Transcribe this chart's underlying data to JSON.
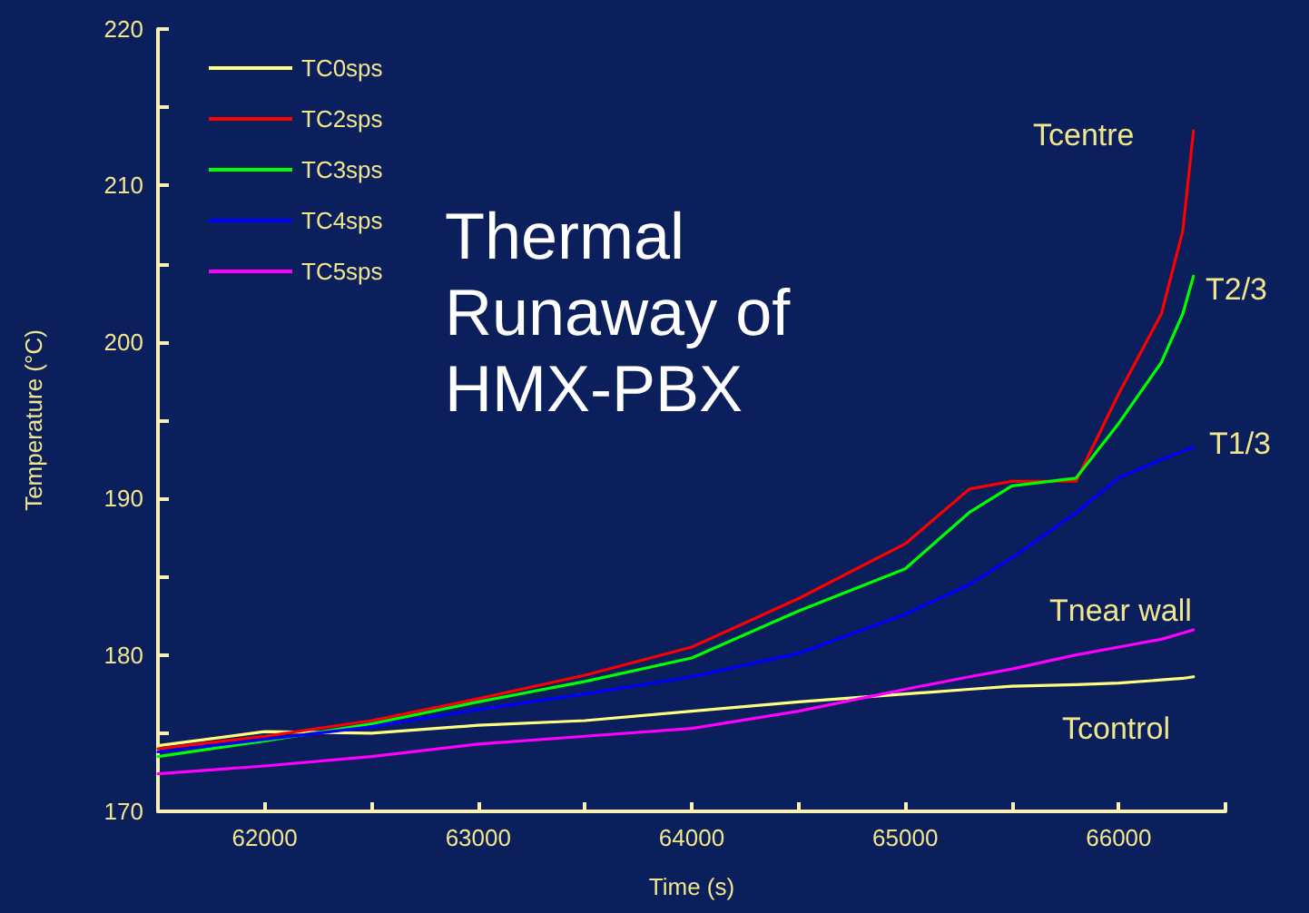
{
  "chart_data": {
    "type": "line",
    "title": "Thermal\nRunaway of\nHMX-PBX",
    "xlabel": "Time (s)",
    "ylabel": "Temperature (°C)",
    "x": [
      61500,
      62000,
      62500,
      63000,
      63500,
      64000,
      64500,
      65000,
      65300,
      65500,
      65800,
      66000,
      66200,
      66300,
      66350
    ],
    "series": [
      {
        "name": "TC0sps",
        "color": "#ffff80",
        "values": [
          174.2,
          175.1,
          175.0,
          175.5,
          175.8,
          176.4,
          177.0,
          177.5,
          177.8,
          178.0,
          178.1,
          178.2,
          178.4,
          178.5,
          178.6
        ]
      },
      {
        "name": "TC2sps",
        "color": "#ff0000",
        "values": [
          174.0,
          174.8,
          175.8,
          177.2,
          178.7,
          180.5,
          183.6,
          187.1,
          190.6,
          191.1,
          191.1,
          196.7,
          201.8,
          207.1,
          213.5
        ]
      },
      {
        "name": "TC3sps",
        "color": "#00ff00",
        "values": [
          173.5,
          174.5,
          175.6,
          177.0,
          178.3,
          179.8,
          182.8,
          185.5,
          189.1,
          190.8,
          191.3,
          194.8,
          198.7,
          201.8,
          204.2
        ]
      },
      {
        "name": "TC4sps",
        "color": "#0000ff",
        "values": [
          173.8,
          174.6,
          175.4,
          176.5,
          177.5,
          178.6,
          180.1,
          182.6,
          184.5,
          186.2,
          189.1,
          191.3,
          192.5,
          193.0,
          193.3
        ]
      },
      {
        "name": "TC5sps",
        "color": "#ff00ff",
        "values": [
          172.4,
          172.9,
          173.5,
          174.3,
          174.8,
          175.3,
          176.4,
          177.8,
          178.6,
          179.1,
          180.0,
          180.5,
          181.0,
          181.4,
          181.6
        ]
      }
    ],
    "xlim": [
      61500,
      66500
    ],
    "xticks": [
      62000,
      {
        "value": 62500,
        "label": null
      },
      63000,
      {
        "value": 63500,
        "label": null
      },
      64000,
      {
        "value": 64500,
        "label": null
      },
      65000,
      {
        "value": 65500,
        "label": null
      },
      66000,
      {
        "value": 66500,
        "label": null
      }
    ],
    "ylim": [
      170,
      220
    ],
    "yticks": [
      170,
      {
        "value": 175,
        "label": null
      },
      180,
      {
        "value": 185,
        "label": null
      },
      190,
      {
        "value": 195,
        "label": null
      },
      200,
      {
        "value": 205,
        "label": null
      },
      210,
      {
        "value": 215,
        "label": null
      },
      220
    ],
    "annotations": [
      "Tcentre",
      "T2/3",
      "T1/3",
      "Tnear wall",
      "Tcontrol"
    ],
    "grid": false,
    "legend": "top left",
    "marker": "none",
    "line_style": "solid"
  }
}
